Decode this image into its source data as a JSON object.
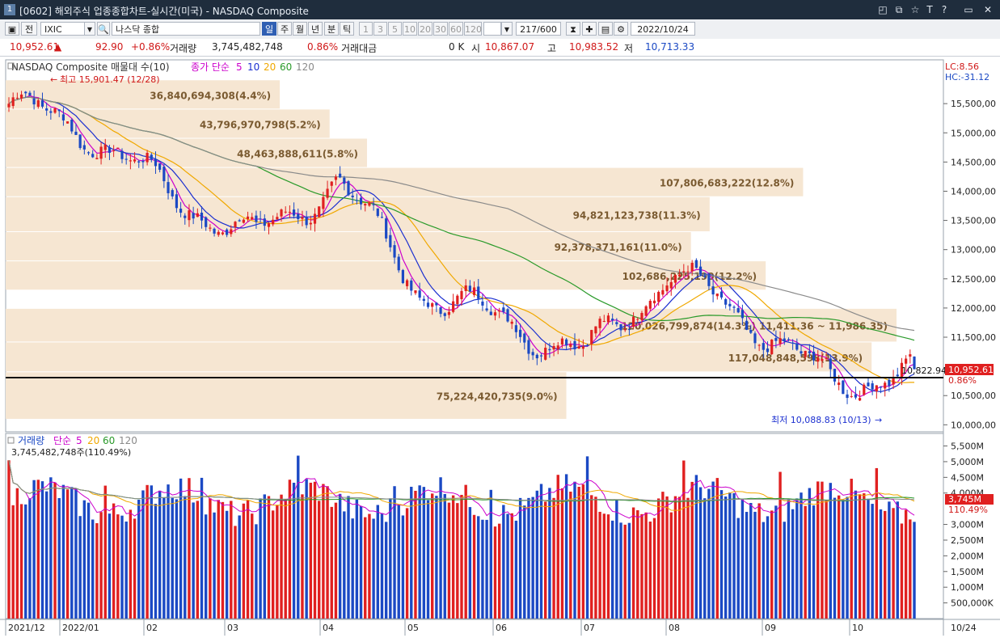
{
  "window": {
    "number": "1",
    "title": "[0602] 해외주식 업종종합차트-실시간(미국) - NASDAQ Composite",
    "controls": [
      "◰",
      "⧉",
      "☆",
      "T",
      "?",
      "▭",
      "✕"
    ]
  },
  "toolbar": {
    "prev_label": "전",
    "symbol": "IXIC",
    "symbol_name": "나스닥 종합",
    "periods": [
      "일",
      "주",
      "월",
      "년",
      "분",
      "틱"
    ],
    "active_period": "일",
    "minutes": [
      "1",
      "3",
      "5",
      "10",
      "20",
      "30",
      "60",
      "120"
    ],
    "count": "217/600",
    "date": "2022/10/24"
  },
  "info": {
    "price": "10,952.61",
    "change_arrow": "▲",
    "change": "92.90",
    "change_pct": "+0.86%",
    "volume_label": "거래량",
    "volume": "3,745,482,748",
    "volume_pct": "0.86%",
    "amount_label": "거래대금",
    "amount": "0 K",
    "open_label": "시",
    "open": "10,867.07",
    "high_label": "고",
    "high": "10,983.52",
    "low_label": "저",
    "low": "10,713.33"
  },
  "price_pane": {
    "legend_title": "NASDAQ Composite 매물대 수(10)",
    "legend_ma_prefix": "종가 단순",
    "ma_periods": [
      "5",
      "10",
      "20",
      "60",
      "120"
    ],
    "ma_colors": [
      "#cc00cc",
      "#1b2fd0",
      "#f0a800",
      "#2a9a2a",
      "#8a8a8a"
    ],
    "lc_label": "LC:8.56",
    "hc_label": "HC:-31.12",
    "high_marker": "최고 15,901.47 (12/28)",
    "low_marker": "최저 10,088.83 (10/13)",
    "last_close_label": "10,822.94",
    "current_price_tag": "10,952.61",
    "current_pct_tag": "0.86%",
    "y_ticks": [
      "15,500,00",
      "15,000,00",
      "14,500,00",
      "14,000,00",
      "13,500,00",
      "13,000,00",
      "12,500,00",
      "12,000,00",
      "11,500,00",
      "10,500,00",
      "10,000,00"
    ],
    "volume_profile": [
      {
        "label": "36,840,694,308(4.4%)",
        "price_lo": 15400,
        "price_hi": 15900,
        "fraction": 0.044
      },
      {
        "label": "43,796,970,798(5.2%)",
        "price_lo": 14900,
        "price_hi": 15400,
        "fraction": 0.052
      },
      {
        "label": "48,463,888,611(5.8%)",
        "price_lo": 14400,
        "price_hi": 14900,
        "fraction": 0.058
      },
      {
        "label": "107,806,683,222(12.8%)",
        "price_lo": 13900,
        "price_hi": 14400,
        "fraction": 0.128
      },
      {
        "label": "94,821,123,738(11.3%)",
        "price_lo": 13300,
        "price_hi": 13900,
        "fraction": 0.113
      },
      {
        "label": "92,378,371,161(11.0%)",
        "price_lo": 12800,
        "price_hi": 13300,
        "fraction": 0.11
      },
      {
        "label": "102,686,225,190(12.2%)",
        "price_lo": 12300,
        "price_hi": 12800,
        "fraction": 0.122
      },
      {
        "label": "120,026,799,874(14.3%) 11,411.36 ~ 11,986.35)",
        "price_lo": 11411.36,
        "price_hi": 11986.35,
        "fraction": 0.143
      },
      {
        "label": "117,048,848,598(13.9%)",
        "price_lo": 10900,
        "price_hi": 11411,
        "fraction": 0.139
      },
      {
        "label": "75,224,420,735(9.0%)",
        "price_lo": 10088,
        "price_hi": 10900,
        "fraction": 0.09
      }
    ]
  },
  "volume_pane": {
    "legend_title": "거래량",
    "legend_ma_prefix": "단순",
    "ma_periods": [
      "5",
      "20",
      "60",
      "120"
    ],
    "ma_colors": [
      "#cc00cc",
      "#f0a800",
      "#2a9a2a",
      "#8a8a8a"
    ],
    "current_volume": "3,745,482,748주(110.49%)",
    "current_tag": "3,745M",
    "current_pct": "110.49%",
    "y_ticks": [
      "5,500M",
      "5,000M",
      "4,500M",
      "4,000M",
      "3,000M",
      "2,500M",
      "2,000M",
      "1,500M",
      "1,000M",
      "500,000K"
    ]
  },
  "x_axis": {
    "labels": [
      "2021/12",
      "2022/01",
      "02",
      "03",
      "04",
      "05",
      "06",
      "07",
      "08",
      "09",
      "10"
    ],
    "cursor_date": "10/24"
  },
  "chart_data": {
    "type": "candlestick",
    "title": "NASDAQ Composite",
    "x_range": [
      "2021/12",
      "2022/10/24"
    ],
    "price_range": [
      10000,
      15900
    ],
    "volume_range": [
      0,
      5500
    ],
    "volume_unit": "M",
    "price_anchors": [
      {
        "month": "2021/12",
        "close": 15500
      },
      {
        "month": "2022/01",
        "close": 15000
      },
      {
        "month": "02",
        "close": 13900
      },
      {
        "month": "03",
        "close": 13200
      },
      {
        "month": "04",
        "close": 14200
      },
      {
        "month": "05",
        "close": 12300
      },
      {
        "month": "06",
        "close": 11800
      },
      {
        "month": "07",
        "close": 11200
      },
      {
        "month": "08",
        "close": 12600
      },
      {
        "month": "09",
        "close": 11800
      },
      {
        "month": "10",
        "close": 10700
      },
      {
        "month": "10/24",
        "close": 10952.61
      }
    ],
    "high": {
      "value": 15901.47,
      "date": "12/28"
    },
    "low": {
      "value": 10088.83,
      "date": "10/13"
    },
    "grid": false,
    "legend": "top-left"
  }
}
